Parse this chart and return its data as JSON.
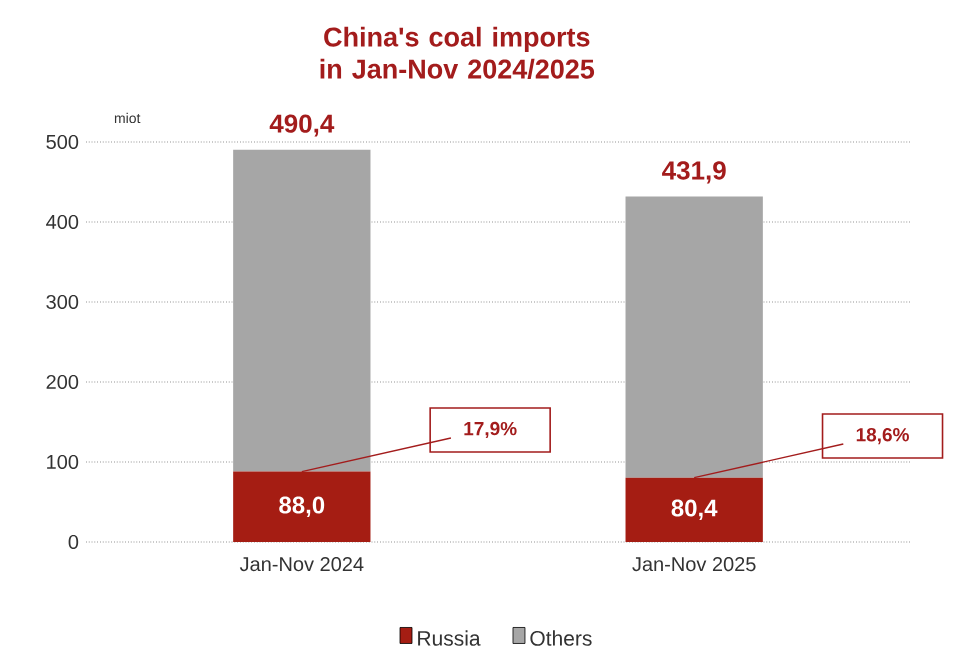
{
  "chart_data": {
    "type": "bar",
    "title": "China's coal imports in Jan-Nov 2024/2025",
    "ylabel": "miot",
    "categories": [
      "Jan-Nov 2024",
      "Jan-Nov 2025"
    ],
    "stacked": true,
    "series": [
      {
        "name": "Russia",
        "color": "#a51d13",
        "values": [
          88.0,
          80.4
        ],
        "value_labels": [
          "88,0",
          "80,4"
        ]
      },
      {
        "name": "Others",
        "color": "#a6a6a6",
        "values": [
          402.4,
          351.5
        ]
      }
    ],
    "totals": [
      "490,4",
      "431,9"
    ],
    "annotations": [
      {
        "text": "17,9%",
        "x": "Jan-Nov 2024",
        "y": 88.0
      },
      {
        "text": "18,6%",
        "x": "Jan-Nov 2025",
        "y": 80.4
      }
    ],
    "ylim": [
      0,
      500
    ],
    "yticks": [
      0,
      100,
      200,
      300,
      400,
      500
    ],
    "grid": "y",
    "legend": "bottom"
  }
}
